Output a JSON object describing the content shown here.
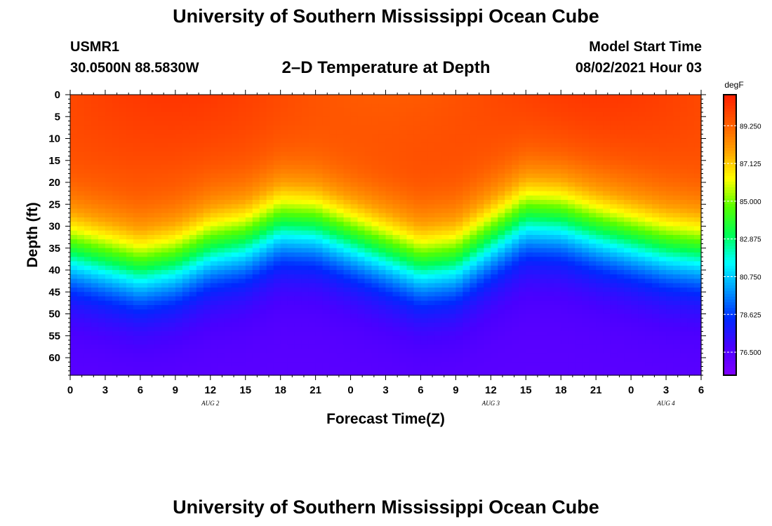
{
  "header": {
    "title": "University of Southern Mississippi Ocean Cube",
    "station_id": "USMR1",
    "coordinates": "30.0500N  88.5830W",
    "subtitle": "2–D Temperature at Depth",
    "model_start_label": "Model Start Time",
    "model_start_value": "08/02/2021 Hour 03"
  },
  "footer": {
    "title": "University of Southern Mississippi Ocean Cube"
  },
  "chart_data": {
    "type": "heatmap",
    "title": "2–D Temperature at Depth",
    "xlabel": "Forecast Time(Z)",
    "ylabel": "Depth (ft)",
    "x_tick_labels": [
      "0",
      "3",
      "6",
      "9",
      "12",
      "15",
      "18",
      "21",
      "0",
      "3",
      "6",
      "9",
      "12",
      "15",
      "18",
      "21",
      "0",
      "3",
      "6"
    ],
    "x_range_hours": [
      0,
      54
    ],
    "day_labels": [
      {
        "label": "AUG  2",
        "hour": 12
      },
      {
        "label": "AUG  3",
        "hour": 36
      },
      {
        "label": "AUG  4",
        "hour": 51
      }
    ],
    "y_tick_labels": [
      "0",
      "5",
      "10",
      "15",
      "20",
      "25",
      "30",
      "35",
      "40",
      "45",
      "50",
      "55",
      "60"
    ],
    "y_range_ft": [
      0,
      64
    ],
    "colorbar": {
      "unit": "degF",
      "range": [
        75.2,
        91.0
      ],
      "ticks": [
        "76.500",
        "78.625",
        "80.750",
        "82.875",
        "85.000",
        "87.125",
        "89.250"
      ],
      "colors": [
        "#8000ff",
        "#4a00ff",
        "#0028ff",
        "#0096ff",
        "#00ffff",
        "#00ff55",
        "#55ff00",
        "#ffff00",
        "#ffa000",
        "#ff5a00",
        "#ff1e00"
      ]
    },
    "isotherm_depth_ft_by_hour": [
      {
        "hour": 0,
        "depth": 36
      },
      {
        "hour": 3,
        "depth": 38
      },
      {
        "hour": 6,
        "depth": 40
      },
      {
        "hour": 9,
        "depth": 38.5
      },
      {
        "hour": 12,
        "depth": 35
      },
      {
        "hour": 15,
        "depth": 33.5
      },
      {
        "hour": 18,
        "depth": 29.5
      },
      {
        "hour": 21,
        "depth": 30
      },
      {
        "hour": 24,
        "depth": 33
      },
      {
        "hour": 27,
        "depth": 36
      },
      {
        "hour": 30,
        "depth": 39
      },
      {
        "hour": 33,
        "depth": 38
      },
      {
        "hour": 36,
        "depth": 33
      },
      {
        "hour": 39,
        "depth": 28
      },
      {
        "hour": 42,
        "depth": 28.5
      },
      {
        "hour": 45,
        "depth": 31
      },
      {
        "hour": 48,
        "depth": 33
      },
      {
        "hour": 51,
        "depth": 35
      },
      {
        "hour": 54,
        "depth": 36
      }
    ],
    "surface_temperature_degF": 89.9,
    "bottom_temperature_degF": 76.3
  }
}
